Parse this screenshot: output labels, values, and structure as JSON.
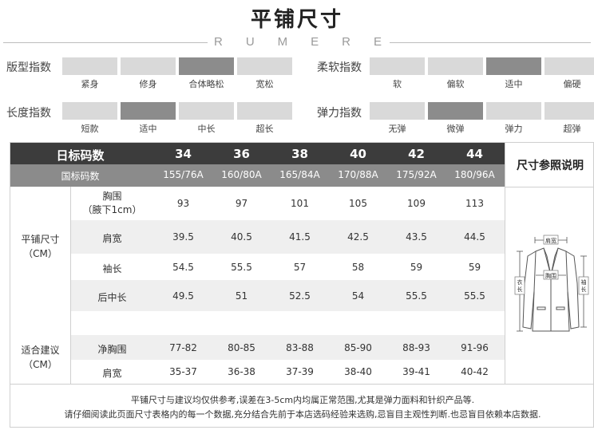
{
  "title": "平铺尺寸",
  "brand": [
    "R",
    "U",
    "M",
    "E",
    "R",
    "E"
  ],
  "indices": {
    "fit": {
      "label": "版型指数",
      "options": [
        "紧身",
        "修身",
        "合体略松",
        "宽松"
      ],
      "selected": 2
    },
    "softness": {
      "label": "柔软指数",
      "options": [
        "软",
        "偏软",
        "适中",
        "偏硬"
      ],
      "selected": 2
    },
    "length": {
      "label": "长度指数",
      "options": [
        "短款",
        "适中",
        "中长",
        "超长"
      ],
      "selected": 1
    },
    "elasticity": {
      "label": "弹力指数",
      "options": [
        "无弹",
        "微弹",
        "弹力",
        "超弹"
      ],
      "selected": 1
    }
  },
  "table": {
    "header_label": "日标码数",
    "sizes": [
      "34",
      "36",
      "38",
      "40",
      "42",
      "44"
    ],
    "intl_label": "国标码数",
    "intl_sizes": [
      "155/76A",
      "160/80A",
      "165/84A",
      "170/88A",
      "175/92A",
      "180/96A"
    ],
    "group1_label": "平铺尺寸",
    "group1_unit": "（CM）",
    "rows": [
      {
        "label": "胸围",
        "sublabel": "（腋下1cm）",
        "values": [
          "93",
          "97",
          "101",
          "105",
          "109",
          "113"
        ]
      },
      {
        "label": "肩宽",
        "values": [
          "39.5",
          "40.5",
          "41.5",
          "42.5",
          "43.5",
          "44.5"
        ]
      },
      {
        "label": "袖长",
        "values": [
          "54.5",
          "55.5",
          "57",
          "58",
          "59",
          "59"
        ]
      },
      {
        "label": "后中长",
        "values": [
          "49.5",
          "51",
          "52.5",
          "54",
          "55.5",
          "55.5"
        ]
      }
    ],
    "group2_label": "适合建议",
    "group2_unit": "（CM）",
    "advice_rows": [
      {
        "label": "净胸围",
        "values": [
          "77-82",
          "80-85",
          "83-88",
          "85-90",
          "88-93",
          "91-96"
        ]
      },
      {
        "label": "肩宽",
        "values": [
          "35-37",
          "36-38",
          "37-39",
          "38-40",
          "39-41",
          "40-42"
        ]
      }
    ]
  },
  "reference": {
    "title": "尺寸参照说明",
    "shoulder_tag": "肩宽",
    "chest_tag": "胸围",
    "length_tag": "衣长",
    "sleeve_tag": "袖长"
  },
  "footer": {
    "line1": "平铺尺寸与建议均仅供参考,误差在3-5cm内均属正常范围,尤其是弹力面料和针织产品等.",
    "line2": "请仔细阅读此页面尺寸表格内的每一个数据,充分结合先前于本店选码经验来选购,忌盲目主观性判断.也忌盲目依赖本店数据."
  },
  "colors": {
    "active_bar": "#8c8c8c",
    "inactive_bar": "#d9d9d9",
    "header_dark": "#3c3c3c",
    "header_mid": "#8b8b8b"
  }
}
